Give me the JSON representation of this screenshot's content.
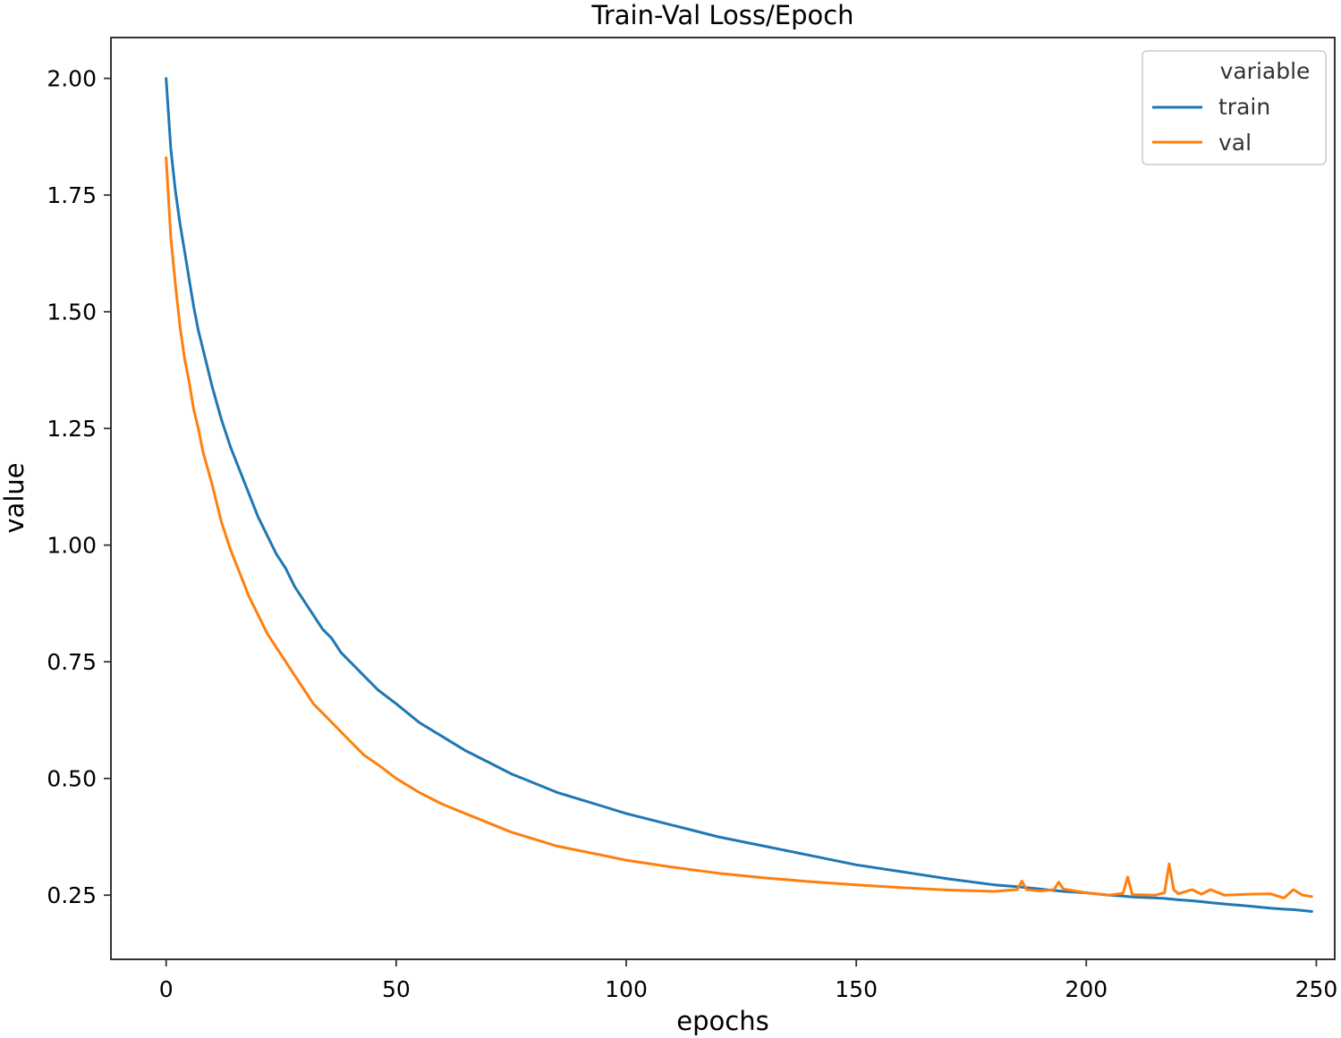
{
  "chart_data": {
    "type": "line",
    "title": "Train-Val Loss/Epoch",
    "xlabel": "epochs",
    "ylabel": "value",
    "xlim": [
      -12,
      254
    ],
    "ylim": [
      0.1125,
      2.0875
    ],
    "xticks": [
      0,
      50,
      100,
      150,
      200,
      250
    ],
    "yticks": [
      0.25,
      0.5,
      0.75,
      1.0,
      1.25,
      1.5,
      1.75,
      2.0
    ],
    "xtick_labels": [
      "0",
      "50",
      "100",
      "150",
      "200",
      "250"
    ],
    "ytick_labels": [
      "0.25",
      "0.50",
      "0.75",
      "1.00",
      "1.25",
      "1.50",
      "1.75",
      "2.00"
    ],
    "grid": false,
    "legend": {
      "title": "variable",
      "placement": "top-right",
      "entries": [
        "train",
        "val"
      ]
    },
    "colors": {
      "train": "#1f77b4",
      "val": "#ff7f0e"
    },
    "x": [
      0,
      1,
      2,
      3,
      4,
      5,
      6,
      7,
      8,
      10,
      12,
      14,
      16,
      18,
      20,
      22,
      24,
      26,
      28,
      30,
      32,
      34,
      36,
      38,
      40,
      43,
      46,
      50,
      55,
      60,
      65,
      70,
      75,
      80,
      85,
      90,
      95,
      100,
      110,
      120,
      130,
      140,
      150,
      160,
      170,
      180,
      185,
      186,
      187,
      190,
      193,
      194,
      195,
      200,
      205,
      208,
      209,
      210,
      215,
      217,
      218,
      219,
      220,
      223,
      225,
      227,
      230,
      235,
      240,
      243,
      245,
      247,
      249
    ],
    "series": [
      {
        "name": "train",
        "values": [
          2.0,
          1.85,
          1.76,
          1.69,
          1.63,
          1.57,
          1.51,
          1.46,
          1.42,
          1.34,
          1.27,
          1.21,
          1.16,
          1.11,
          1.06,
          1.02,
          0.98,
          0.95,
          0.91,
          0.88,
          0.85,
          0.82,
          0.8,
          0.77,
          0.75,
          0.72,
          0.69,
          0.66,
          0.62,
          0.59,
          0.56,
          0.535,
          0.51,
          0.49,
          0.47,
          0.455,
          0.44,
          0.425,
          0.4,
          0.375,
          0.355,
          0.335,
          0.315,
          0.3,
          0.285,
          0.272,
          0.268,
          0.267,
          0.266,
          0.263,
          0.26,
          0.259,
          0.258,
          0.255,
          0.25,
          0.248,
          0.247,
          0.246,
          0.244,
          0.243,
          0.242,
          0.241,
          0.24,
          0.238,
          0.236,
          0.234,
          0.231,
          0.227,
          0.222,
          0.22,
          0.219,
          0.217,
          0.215
        ]
      },
      {
        "name": "val",
        "values": [
          1.83,
          1.66,
          1.56,
          1.47,
          1.4,
          1.35,
          1.29,
          1.25,
          1.2,
          1.13,
          1.05,
          0.99,
          0.94,
          0.89,
          0.85,
          0.81,
          0.78,
          0.75,
          0.72,
          0.69,
          0.66,
          0.64,
          0.62,
          0.6,
          0.58,
          0.55,
          0.53,
          0.5,
          0.47,
          0.445,
          0.425,
          0.405,
          0.385,
          0.37,
          0.355,
          0.345,
          0.335,
          0.325,
          0.31,
          0.297,
          0.287,
          0.279,
          0.272,
          0.266,
          0.261,
          0.258,
          0.262,
          0.28,
          0.262,
          0.259,
          0.262,
          0.278,
          0.263,
          0.255,
          0.25,
          0.254,
          0.289,
          0.251,
          0.25,
          0.255,
          0.317,
          0.262,
          0.253,
          0.262,
          0.252,
          0.262,
          0.25,
          0.252,
          0.253,
          0.244,
          0.262,
          0.25,
          0.247
        ]
      }
    ]
  }
}
